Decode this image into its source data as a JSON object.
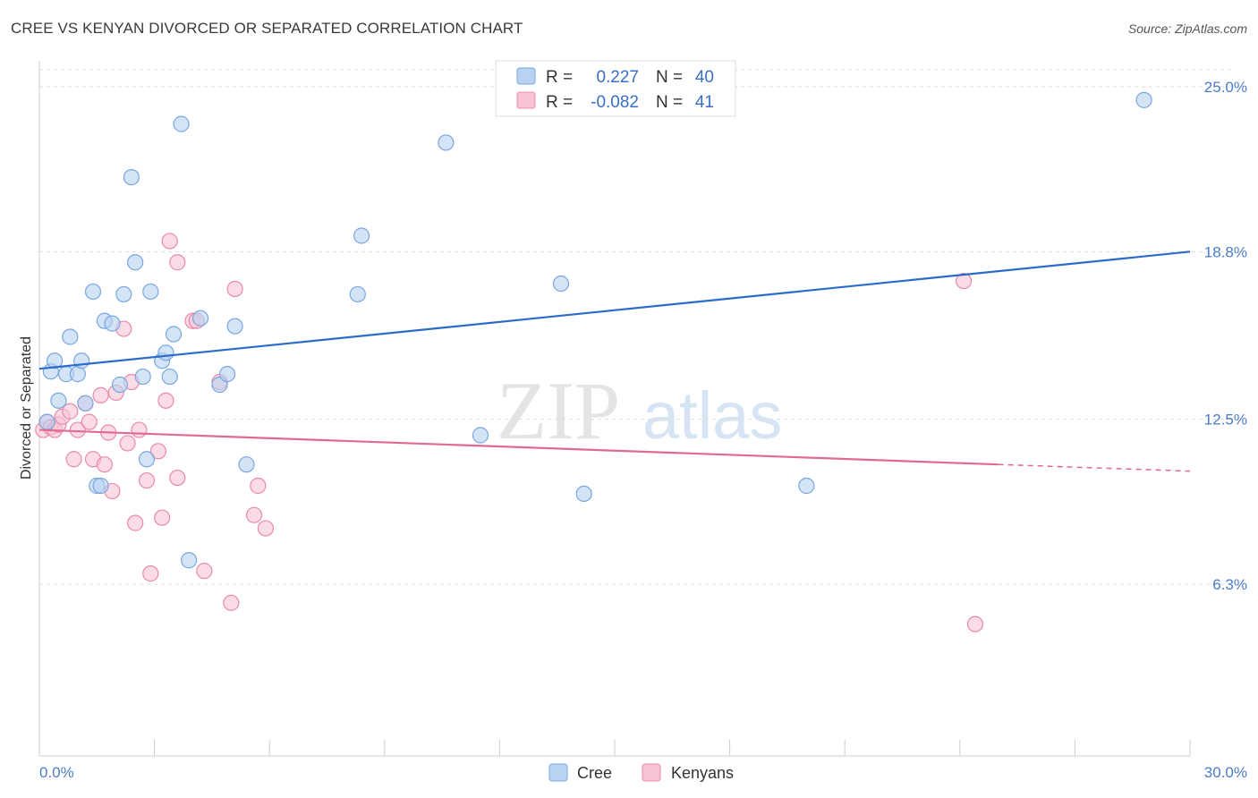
{
  "title": "CREE VS KENYAN DIVORCED OR SEPARATED CORRELATION CHART",
  "source": "Source: ZipAtlas.com",
  "watermark": {
    "zip": "ZIP",
    "atlas": "atlas"
  },
  "colors": {
    "cree_fill": "#b8d2f2",
    "cree_stroke": "#7aa6de",
    "cree_line": "#2b6cc9",
    "kenyan_fill": "#f8c4d4",
    "kenyan_stroke": "#e88aaa",
    "kenyan_line": "#e06a94",
    "tick_text": "#4a7cc8",
    "grid": "#dddddd"
  },
  "legend": {
    "cree": {
      "r_label": "R =",
      "r_value": "0.227",
      "n_label": "N =",
      "n_value": "40"
    },
    "kenyan": {
      "r_label": "R =",
      "r_value": "-0.082",
      "n_label": "N =",
      "n_value": "41"
    }
  },
  "bottom_legend": [
    "Cree",
    "Kenyans"
  ],
  "chart_data": {
    "type": "scatter",
    "title": "CREE VS KENYAN DIVORCED OR SEPARATED CORRELATION CHART",
    "xlabel": "",
    "ylabel": "Divorced or Separated",
    "xlim": [
      0,
      30
    ],
    "ylim": [
      0,
      26.3
    ],
    "x_tick_labels": [
      "0.0%",
      "30.0%"
    ],
    "y_ticks": [
      6.3,
      12.5,
      18.8,
      25.0
    ],
    "y_tick_labels": [
      "6.3%",
      "12.5%",
      "18.8%",
      "25.0%"
    ],
    "series": [
      {
        "name": "Cree",
        "points": [
          [
            0.2,
            12.4
          ],
          [
            0.3,
            14.3
          ],
          [
            0.4,
            14.7
          ],
          [
            0.5,
            13.2
          ],
          [
            0.7,
            14.2
          ],
          [
            0.8,
            15.6
          ],
          [
            1.0,
            14.2
          ],
          [
            1.1,
            14.7
          ],
          [
            1.2,
            13.1
          ],
          [
            1.4,
            17.3
          ],
          [
            1.5,
            10.0
          ],
          [
            1.6,
            10.0
          ],
          [
            1.7,
            16.2
          ],
          [
            1.9,
            16.1
          ],
          [
            2.1,
            13.8
          ],
          [
            2.2,
            17.2
          ],
          [
            2.4,
            21.6
          ],
          [
            2.5,
            18.4
          ],
          [
            2.7,
            14.1
          ],
          [
            2.8,
            11.0
          ],
          [
            2.9,
            17.3
          ],
          [
            3.2,
            14.7
          ],
          [
            3.3,
            15.0
          ],
          [
            3.4,
            14.1
          ],
          [
            3.5,
            15.7
          ],
          [
            3.7,
            23.6
          ],
          [
            3.9,
            7.2
          ],
          [
            4.2,
            16.3
          ],
          [
            4.7,
            13.8
          ],
          [
            4.9,
            14.2
          ],
          [
            5.1,
            16.0
          ],
          [
            5.4,
            10.8
          ],
          [
            8.3,
            17.2
          ],
          [
            8.4,
            19.4
          ],
          [
            10.6,
            22.9
          ],
          [
            11.5,
            11.9
          ],
          [
            13.6,
            17.6
          ],
          [
            14.2,
            9.7
          ],
          [
            20.0,
            10.0
          ],
          [
            28.8,
            24.5
          ]
        ],
        "trend": {
          "x": [
            0,
            30
          ],
          "y": [
            14.4,
            18.8
          ]
        }
      },
      {
        "name": "Kenyans",
        "points": [
          [
            0.1,
            12.1
          ],
          [
            0.2,
            12.4
          ],
          [
            0.3,
            12.2
          ],
          [
            0.4,
            12.1
          ],
          [
            0.5,
            12.3
          ],
          [
            0.6,
            12.6
          ],
          [
            0.8,
            12.8
          ],
          [
            0.9,
            11.0
          ],
          [
            1.0,
            12.1
          ],
          [
            1.2,
            13.1
          ],
          [
            1.3,
            12.4
          ],
          [
            1.4,
            11.0
          ],
          [
            1.6,
            13.4
          ],
          [
            1.7,
            10.8
          ],
          [
            1.8,
            12.0
          ],
          [
            1.9,
            9.8
          ],
          [
            2.0,
            13.5
          ],
          [
            2.2,
            15.9
          ],
          [
            2.3,
            11.6
          ],
          [
            2.4,
            13.9
          ],
          [
            2.5,
            8.6
          ],
          [
            2.6,
            12.1
          ],
          [
            2.8,
            10.2
          ],
          [
            2.9,
            6.7
          ],
          [
            3.1,
            11.3
          ],
          [
            3.2,
            8.8
          ],
          [
            3.3,
            13.2
          ],
          [
            3.4,
            19.2
          ],
          [
            3.6,
            18.4
          ],
          [
            3.6,
            10.3
          ],
          [
            4.0,
            16.2
          ],
          [
            4.1,
            16.2
          ],
          [
            4.3,
            6.8
          ],
          [
            4.7,
            13.9
          ],
          [
            5.0,
            5.6
          ],
          [
            5.1,
            17.4
          ],
          [
            5.6,
            8.9
          ],
          [
            5.7,
            10.0
          ],
          [
            5.9,
            8.4
          ],
          [
            24.1,
            17.7
          ],
          [
            24.4,
            4.8
          ]
        ],
        "trend": {
          "x": [
            0,
            25.0
          ],
          "y": [
            12.1,
            10.8
          ]
        },
        "trend_dashed": {
          "x": [
            25.0,
            30
          ],
          "y": [
            10.8,
            10.55
          ]
        }
      }
    ]
  }
}
